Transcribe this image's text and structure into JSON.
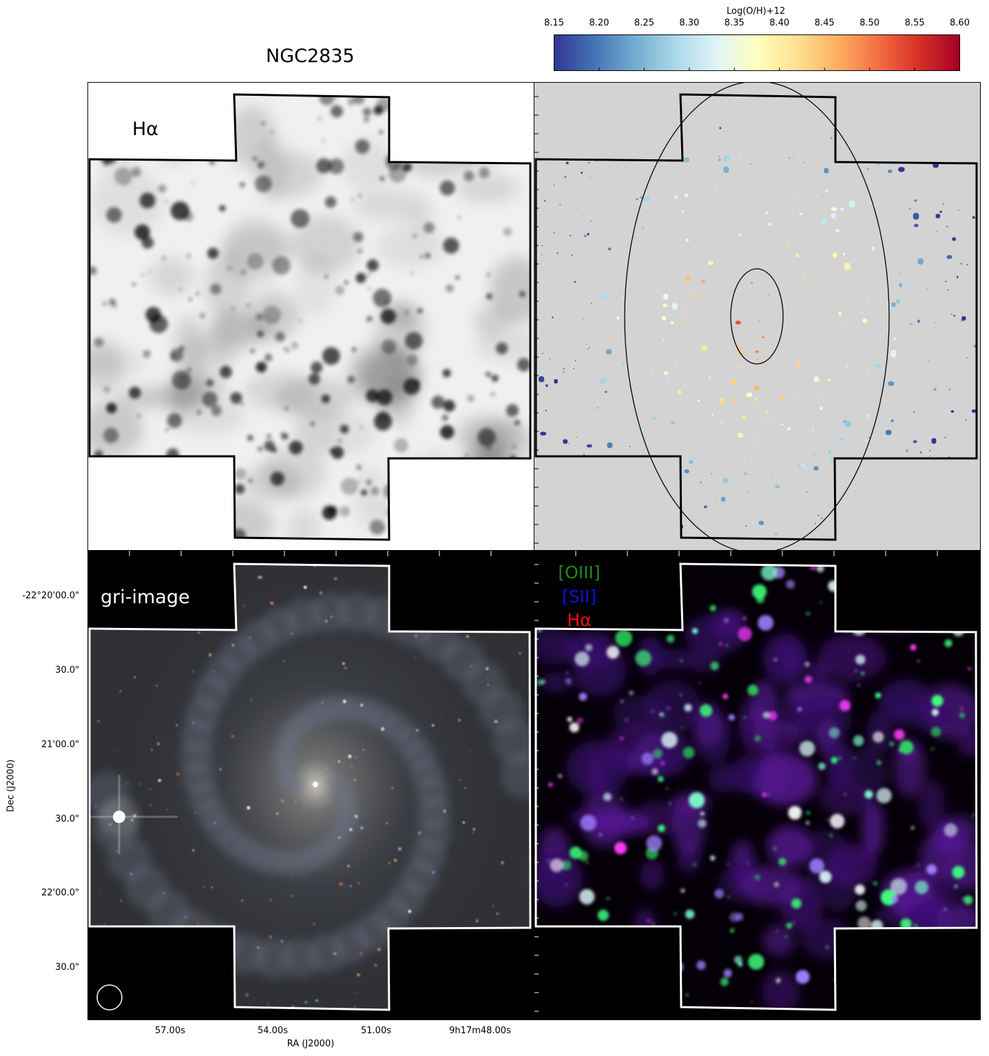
{
  "title": "NGC2835",
  "colorbar": {
    "label": "Log(O/H)+12",
    "ticks": [
      "8.15",
      "8.20",
      "8.25",
      "8.30",
      "8.35",
      "8.40",
      "8.45",
      "8.50",
      "8.55",
      "8.60"
    ],
    "range": [
      8.15,
      8.6
    ],
    "colormap": "RdYlBu_r",
    "colors": [
      "#313695",
      "#4575b4",
      "#74add1",
      "#abd9e9",
      "#e0f3f8",
      "#ffffbf",
      "#fee090",
      "#fdae61",
      "#f46d43",
      "#d73027",
      "#a50026"
    ]
  },
  "panels": {
    "ha": {
      "label": "Hα"
    },
    "oh": {},
    "gri": {
      "label": "gri-image"
    },
    "rgb": {
      "labels": {
        "oiii": "[OIII]",
        "sii": "[SII]",
        "ha": "Hα"
      }
    }
  },
  "axes": {
    "ylabel": "Dec (J2000)",
    "xlabel": "RA (J2000)",
    "yticks": [
      "-22°20'00.0\"",
      "30.0\"",
      "21'00.0\"",
      "30.0\"",
      "22'00.0\"",
      "30.0\""
    ],
    "xticks": [
      "57.00s",
      "54.00s",
      "51.00s",
      "9h17m48.00s"
    ]
  }
}
